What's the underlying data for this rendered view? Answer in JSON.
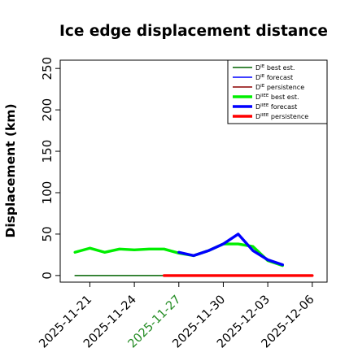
{
  "chart_data": {
    "type": "line",
    "title": "Ice edge displacement distance",
    "ylabel": "Displacement (km)",
    "xlabel": "",
    "ylim": [
      -8,
      260
    ],
    "yticks": [
      0,
      50,
      100,
      150,
      200,
      250
    ],
    "xlim": [
      "2025-11-19",
      "2025-12-07"
    ],
    "xticks": [
      {
        "date": "2025-11-21",
        "label": "2025-11-21",
        "color": "#000000"
      },
      {
        "date": "2025-11-24",
        "label": "2025-11-24",
        "color": "#000000"
      },
      {
        "date": "2025-11-27",
        "label": "2025-11-27",
        "color": "#228b22"
      },
      {
        "date": "2025-11-30",
        "label": "2025-11-30",
        "color": "#000000"
      },
      {
        "date": "2025-12-03",
        "label": "2025-12-03",
        "color": "#000000"
      },
      {
        "date": "2025-12-06",
        "label": "2025-12-06",
        "color": "#000000"
      }
    ],
    "grid": false,
    "legend_position": "top-right",
    "series": [
      {
        "name": "D^IE_ best est.",
        "name_base": "D",
        "name_sup": "IE",
        "name_rest": " best est.",
        "color": "#006400",
        "thick": false,
        "points": [
          [
            "2025-11-20",
            0
          ],
          [
            "2025-11-26",
            0
          ]
        ]
      },
      {
        "name": "D^IE_ forecast",
        "name_base": "D",
        "name_sup": "IE",
        "name_rest": " forecast",
        "color": "#0000ff",
        "thick": false,
        "points": []
      },
      {
        "name": "D^IE_ persistence",
        "name_base": "D",
        "name_sup": "IE",
        "name_rest": " persistence",
        "color": "#8b0000",
        "thick": false,
        "points": []
      },
      {
        "name": "D^IIEE_ best est.",
        "name_base": "D",
        "name_sup": "IIEE",
        "name_rest": " best est.",
        "color": "#00ee00",
        "thick": true,
        "points": [
          [
            "2025-11-20",
            28
          ],
          [
            "2025-11-21",
            33
          ],
          [
            "2025-11-22",
            28
          ],
          [
            "2025-11-23",
            32
          ],
          [
            "2025-11-24",
            31
          ],
          [
            "2025-11-25",
            32
          ],
          [
            "2025-11-26",
            32
          ],
          [
            "2025-11-27",
            27
          ],
          [
            "2025-11-28",
            24
          ],
          [
            "2025-11-29",
            30
          ],
          [
            "2025-11-30",
            38
          ],
          [
            "2025-12-01",
            38
          ],
          [
            "2025-12-02",
            35
          ],
          [
            "2025-12-03",
            18
          ],
          [
            "2025-12-04",
            12
          ]
        ]
      },
      {
        "name": "D^IIEE_ forecast",
        "name_base": "D",
        "name_sup": "IIEE",
        "name_rest": " forecast",
        "color": "#0000ff",
        "thick": true,
        "points": [
          [
            "2025-11-27",
            28
          ],
          [
            "2025-11-28",
            24
          ],
          [
            "2025-11-29",
            30
          ],
          [
            "2025-11-30",
            38
          ],
          [
            "2025-12-01",
            50
          ],
          [
            "2025-12-02",
            30
          ],
          [
            "2025-12-03",
            19
          ],
          [
            "2025-12-04",
            13
          ]
        ]
      },
      {
        "name": "D^IIEE_ persistence",
        "name_base": "D",
        "name_sup": "IIEE",
        "name_rest": " persistence",
        "color": "#ff0000",
        "thick": true,
        "points": [
          [
            "2025-11-26",
            0
          ],
          [
            "2025-12-06",
            0
          ]
        ]
      }
    ]
  }
}
